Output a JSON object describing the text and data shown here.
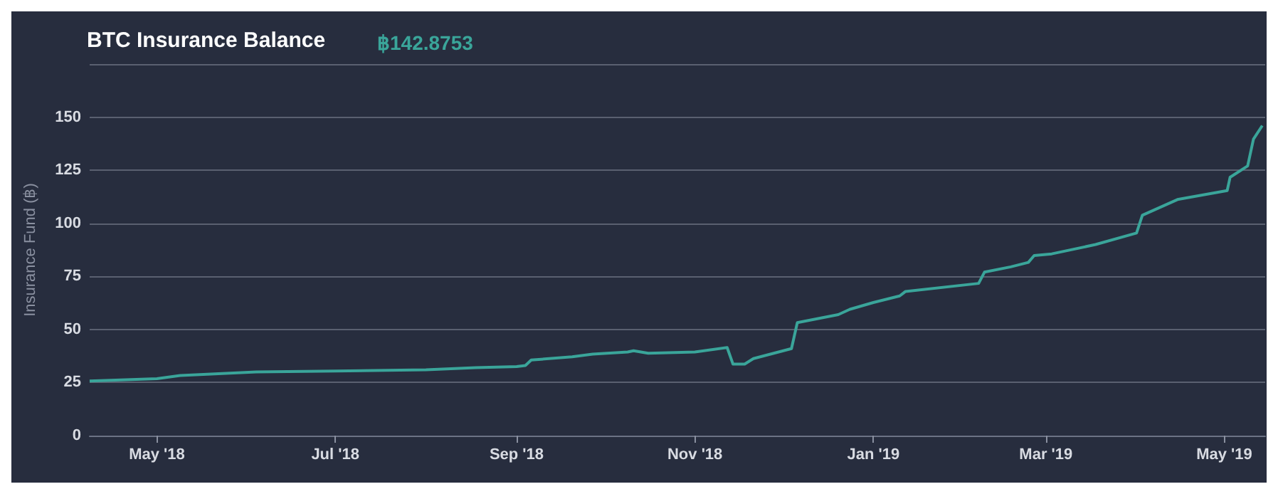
{
  "chart_data": {
    "type": "line",
    "title": "BTC Insurance Balance",
    "subtitle": "฿142.8753",
    "ylabel": "Insurance Fund (฿)",
    "x": [
      "2018-04-08",
      "2018-05-01",
      "2018-05-09",
      "2018-06-04",
      "2018-07-01",
      "2018-08-01",
      "2018-08-18",
      "2018-09-01",
      "2018-09-04",
      "2018-09-06",
      "2018-09-20",
      "2018-09-27",
      "2018-10-09",
      "2018-10-11",
      "2018-10-16",
      "2018-11-01",
      "2018-11-12",
      "2018-11-14",
      "2018-11-18",
      "2018-11-21",
      "2018-12-04",
      "2018-12-06",
      "2018-12-20",
      "2018-12-24",
      "2019-01-01",
      "2019-01-10",
      "2019-01-12",
      "2019-02-06",
      "2019-02-08",
      "2019-02-17",
      "2019-02-23",
      "2019-02-25",
      "2019-03-03",
      "2019-03-18",
      "2019-04-01",
      "2019-04-03",
      "2019-04-15",
      "2019-05-02",
      "2019-05-03",
      "2019-05-09",
      "2019-05-11",
      "2019-05-14"
    ],
    "series": [
      {
        "color": "#3aa59a",
        "values": [
          25.7,
          26.8,
          28.3,
          30,
          30.4,
          31,
          32,
          32.5,
          33,
          35.6,
          37.1,
          38.4,
          39.4,
          40,
          38.8,
          39.4,
          41.5,
          33.7,
          33.7,
          36.3,
          41,
          53.2,
          57,
          59.5,
          62.7,
          65.8,
          67.9,
          71.7,
          77,
          79.5,
          81.6,
          84.8,
          85.6,
          90,
          95.4,
          103.8,
          111.2,
          115.4,
          121.7,
          127,
          139.7,
          146
        ]
      }
    ],
    "xlim": [
      "2018-04-08",
      "2019-05-15"
    ],
    "xticks": [
      {
        "value": "2018-05-01",
        "label": "May '18"
      },
      {
        "value": "2018-07-01",
        "label": "Jul '18"
      },
      {
        "value": "2018-09-01",
        "label": "Sep '18"
      },
      {
        "value": "2018-11-01",
        "label": "Nov '18"
      },
      {
        "value": "2019-01-01",
        "label": "Jan '19"
      },
      {
        "value": "2019-03-01",
        "label": "Mar '19"
      },
      {
        "value": "2019-05-01",
        "label": "May '19"
      }
    ],
    "ylim": [
      0,
      175
    ],
    "yticks": [
      0,
      25,
      50,
      75,
      100,
      125,
      150,
      {
        "value": 175,
        "label": null
      }
    ],
    "grid": "y",
    "marker": "none",
    "line_style": "solid"
  }
}
